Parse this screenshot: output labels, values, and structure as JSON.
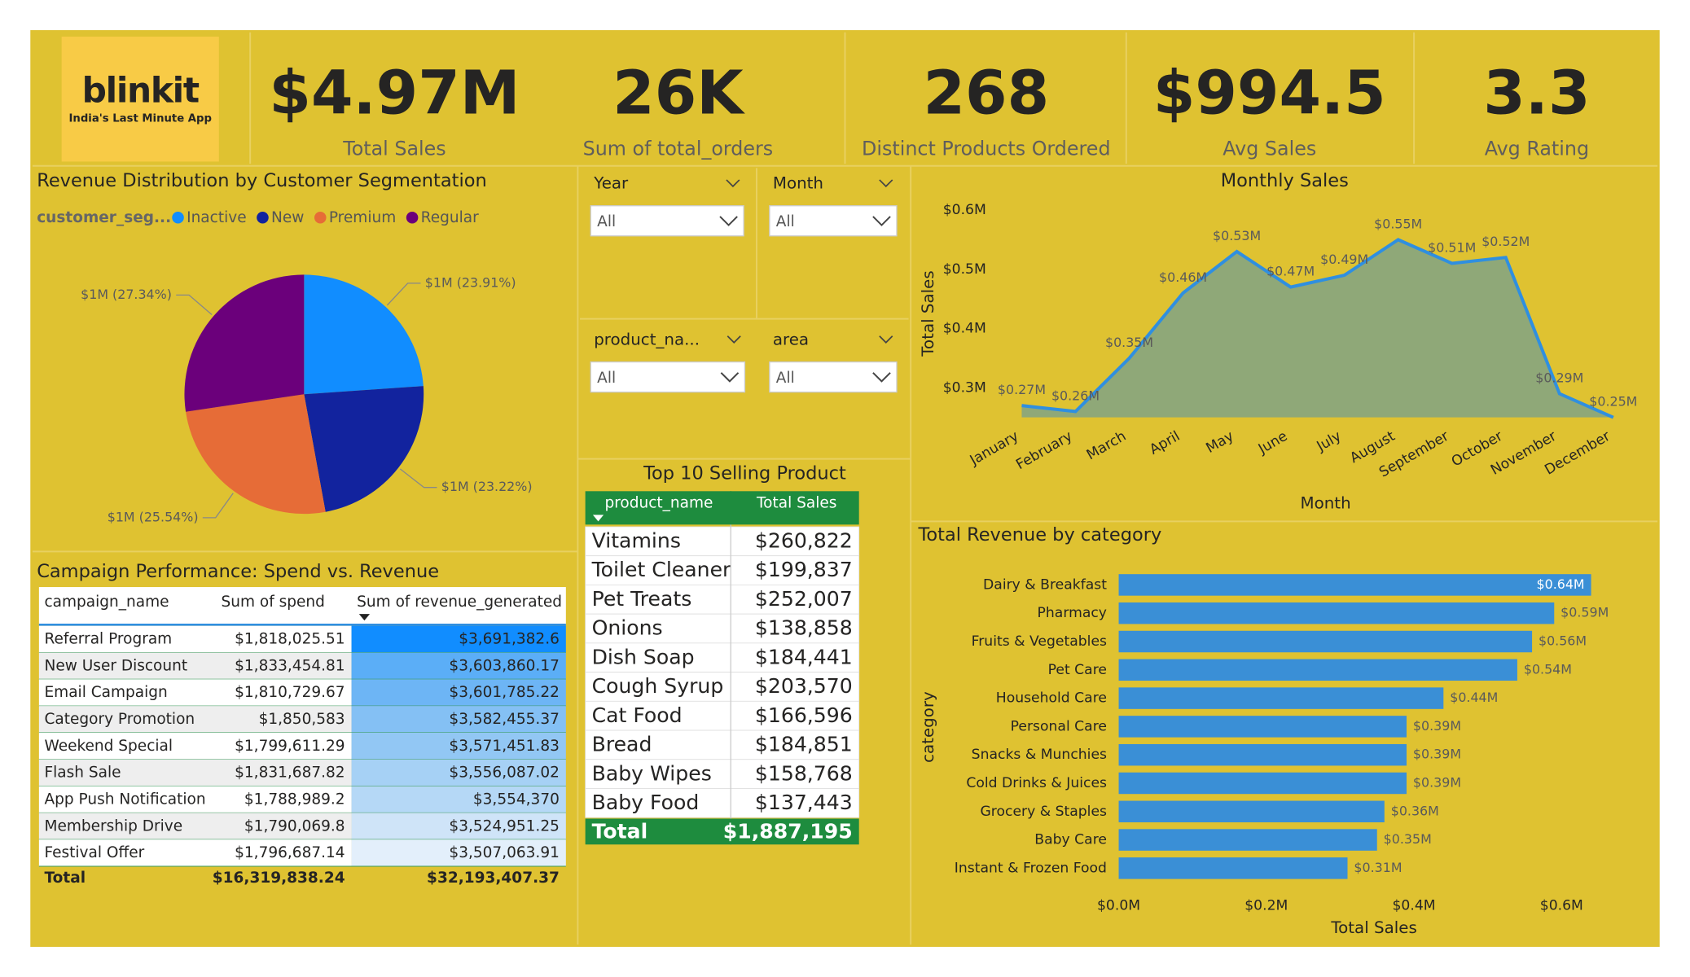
{
  "logo": {
    "name": "blinkit",
    "tagline": "India's Last Minute App"
  },
  "kpis": [
    {
      "value": "$4.97M",
      "label": "Total Sales"
    },
    {
      "value": "26K",
      "label": "Sum of total_orders"
    },
    {
      "value": "268",
      "label": "Distinct Products Ordered"
    },
    {
      "value": "$994.5",
      "label": "Avg Sales"
    },
    {
      "value": "3.3",
      "label": "Avg Rating"
    }
  ],
  "slicers": [
    {
      "label": "Year",
      "value": "All"
    },
    {
      "label": "Month",
      "value": "All"
    },
    {
      "label": "product_na...",
      "value": "All"
    },
    {
      "label": "area",
      "value": "All"
    }
  ],
  "chart_data": [
    {
      "type": "pie",
      "title": "Revenue Distribution by Customer Segmentation",
      "legend_title": "customer_seg...",
      "categories": [
        "Inactive",
        "New",
        "Premium",
        "Regular"
      ],
      "values": [
        23.91,
        23.22,
        25.54,
        27.34
      ],
      "value_labels": [
        "$1M (23.91%)",
        "$1M (23.22%)",
        "$1M (25.54%)",
        "$1M (27.34%)"
      ],
      "colors": [
        "#118DFF",
        "#12239E",
        "#E66C37",
        "#6B007B"
      ]
    },
    {
      "type": "area",
      "title": "Monthly Sales",
      "x_label": "Month",
      "y_label": "Total Sales",
      "categories": [
        "January",
        "February",
        "March",
        "April",
        "May",
        "June",
        "July",
        "August",
        "September",
        "October",
        "November",
        "December"
      ],
      "values": [
        0.27,
        0.26,
        0.35,
        0.46,
        0.53,
        0.47,
        0.49,
        0.55,
        0.51,
        0.52,
        0.29,
        0.25
      ],
      "value_labels": [
        "$0.27M",
        "$0.26M",
        "$0.35M",
        "$0.46M",
        "$0.53M",
        "$0.47M",
        "$0.49M",
        "$0.55M",
        "$0.51M",
        "$0.52M",
        "$0.29M",
        "$0.25M"
      ],
      "color": "#2F8FE0",
      "fill": "#8FA878",
      "ylim": [
        0.25,
        0.6
      ],
      "yticks": [
        {
          "value": 0.3,
          "label": "$0.3M"
        },
        {
          "value": 0.4,
          "label": "$0.4M"
        },
        {
          "value": 0.5,
          "label": "$0.5M"
        },
        {
          "value": 0.6,
          "label": "$0.6M"
        }
      ]
    },
    {
      "type": "barh",
      "title": "Total Revenue by category",
      "x_label": "Total Sales",
      "y_label": "category",
      "categories": [
        "Dairy & Breakfast",
        "Pharmacy",
        "Fruits & Vegetables",
        "Pet Care",
        "Household Care",
        "Personal Care",
        "Snacks & Munchies",
        "Cold Drinks & Juices",
        "Grocery & Staples",
        "Baby Care",
        "Instant & Frozen Food"
      ],
      "values": [
        0.64,
        0.59,
        0.56,
        0.54,
        0.44,
        0.39,
        0.39,
        0.39,
        0.36,
        0.35,
        0.31
      ],
      "value_labels": [
        "$0.64M",
        "$0.59M",
        "$0.56M",
        "$0.54M",
        "$0.44M",
        "$0.39M",
        "$0.39M",
        "$0.39M",
        "$0.36M",
        "$0.35M",
        "$0.31M"
      ],
      "color": "#3A8FD6",
      "xlim": [
        0,
        0.7
      ],
      "xticks": [
        {
          "value": 0,
          "label": "$0.0M"
        },
        {
          "value": 0.2,
          "label": "$0.2M"
        },
        {
          "value": 0.4,
          "label": "$0.4M"
        },
        {
          "value": 0.6,
          "label": "$0.6M"
        }
      ]
    }
  ],
  "campaign_table": {
    "title": "Campaign Performance: Spend vs. Revenue",
    "headers": [
      "campaign_name",
      "Sum of spend",
      "Sum of revenue_generated"
    ],
    "rows": [
      [
        "Referral Program",
        "$1,818,025.51",
        "$3,691,382.6"
      ],
      [
        "New User Discount",
        "$1,833,454.81",
        "$3,603,860.17"
      ],
      [
        "Email Campaign",
        "$1,810,729.67",
        "$3,601,785.22"
      ],
      [
        "Category Promotion",
        "$1,850,583",
        "$3,582,455.37"
      ],
      [
        "Weekend Special",
        "$1,799,611.29",
        "$3,571,451.83"
      ],
      [
        "Flash Sale",
        "$1,831,687.82",
        "$3,556,087.02"
      ],
      [
        "App Push Notification",
        "$1,788,989.2",
        "$3,554,370"
      ],
      [
        "Membership Drive",
        "$1,790,069.8",
        "$3,524,951.25"
      ],
      [
        "Festival Offer",
        "$1,796,687.14",
        "$3,507,063.91"
      ]
    ],
    "total": [
      "Total",
      "$16,319,838.24",
      "$32,193,407.37"
    ]
  },
  "top_products": {
    "title": "Top 10 Selling Product",
    "headers": [
      "product_name",
      "Total Sales"
    ],
    "rows": [
      [
        "Vitamins",
        "$260,822"
      ],
      [
        "Toilet Cleaner",
        "$199,837"
      ],
      [
        "Pet Treats",
        "$252,007"
      ],
      [
        "Onions",
        "$138,858"
      ],
      [
        "Dish Soap",
        "$184,441"
      ],
      [
        "Cough Syrup",
        "$203,570"
      ],
      [
        "Cat Food",
        "$166,596"
      ],
      [
        "Bread",
        "$184,851"
      ],
      [
        "Baby Wipes",
        "$158,768"
      ],
      [
        "Baby Food",
        "$137,443"
      ]
    ],
    "total": [
      "Total",
      "$1,887,195"
    ]
  }
}
